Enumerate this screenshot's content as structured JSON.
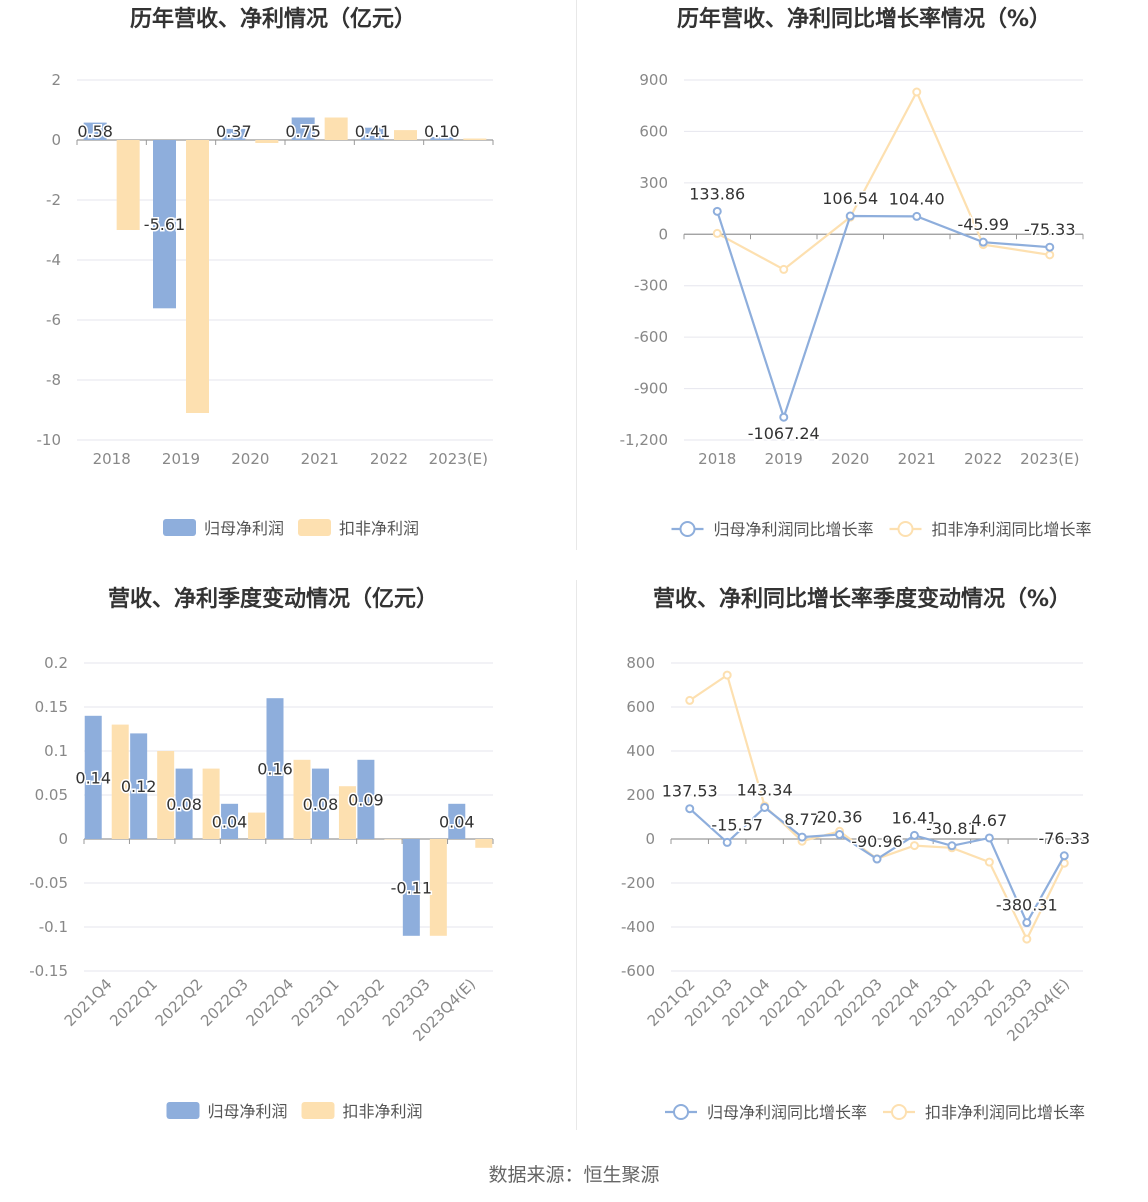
{
  "colors": {
    "primary": "#8eaedc",
    "secondary": "#fde0b0",
    "grid": "#e6e6ee",
    "axis": "#999999",
    "label": "#888888",
    "title": "#333333"
  },
  "footer": {
    "text": "数据来源：恒生聚源"
  },
  "chart_data": [
    {
      "type": "bar",
      "title": "历年营收、净利情况（亿元）",
      "categories": [
        "2018",
        "2019",
        "2020",
        "2021",
        "2022",
        "2023(E)"
      ],
      "ylim": [
        -10,
        2
      ],
      "yticks": [
        "2",
        "0",
        "-2",
        "-4",
        "-6",
        "-8",
        "-10"
      ],
      "series": [
        {
          "name": "归母净利润",
          "values": [
            0.58,
            -5.61,
            0.37,
            0.75,
            0.41,
            0.1
          ],
          "labels": [
            "0.58",
            "-5.61",
            "0.37",
            "0.75",
            "0.41",
            "0.10"
          ]
        },
        {
          "name": "扣非净利润",
          "values": [
            -3.0,
            -9.1,
            -0.1,
            0.75,
            0.33,
            0.05
          ]
        }
      ],
      "legend": "bottom"
    },
    {
      "type": "line",
      "title": "历年营收、净利同比增长率情况（%）",
      "categories": [
        "2018",
        "2019",
        "2020",
        "2021",
        "2022",
        "2023(E)"
      ],
      "ylim": [
        -1200,
        900
      ],
      "yticks": [
        "900",
        "600",
        "300",
        "0",
        "-300",
        "-600",
        "-900",
        "-1,200"
      ],
      "series": [
        {
          "name": "归母净利润同比增长率",
          "values": [
            133.86,
            -1067.24,
            106.54,
            104.4,
            -45.99,
            -75.33
          ],
          "labels": [
            "133.86",
            "-1067.24",
            "106.54",
            "104.40",
            "-45.99",
            "-75.33"
          ]
        },
        {
          "name": "扣非净利润同比增长率",
          "values": [
            5,
            -205,
            100,
            830,
            -60,
            -120
          ]
        }
      ],
      "legend": "bottom"
    },
    {
      "type": "bar",
      "title": "营收、净利季度变动情况（亿元）",
      "categories": [
        "2021Q4",
        "2022Q1",
        "2022Q2",
        "2022Q3",
        "2022Q4",
        "2023Q1",
        "2023Q2",
        "2023Q3",
        "2023Q4(E)"
      ],
      "ylim": [
        -0.15,
        0.2
      ],
      "yticks": [
        "0.2",
        "0.15",
        "0.1",
        "0.05",
        "0",
        "-0.05",
        "-0.1",
        "-0.15"
      ],
      "series": [
        {
          "name": "归母净利润",
          "values": [
            0.14,
            0.12,
            0.08,
            0.04,
            0.16,
            0.08,
            0.09,
            -0.11,
            0.04
          ],
          "labels": [
            "0.14",
            "0.12",
            "0.08",
            "0.04",
            "0.16",
            "0.08",
            "0.09",
            "-0.11",
            "0.04"
          ]
        },
        {
          "name": "扣非净利润",
          "values": [
            0.13,
            0.1,
            0.08,
            0.03,
            0.09,
            0.06,
            0.0,
            -0.11,
            -0.01
          ]
        }
      ],
      "legend": "bottom"
    },
    {
      "type": "line",
      "title": "营收、净利同比增长率季度变动情况（%）",
      "categories": [
        "2021Q2",
        "2021Q3",
        "2021Q4",
        "2022Q1",
        "2022Q2",
        "2022Q3",
        "2022Q4",
        "2023Q1",
        "2023Q2",
        "2023Q3",
        "2023Q4(E)"
      ],
      "ylim": [
        -600,
        800
      ],
      "yticks": [
        "800",
        "600",
        "400",
        "200",
        "0",
        "-200",
        "-400",
        "-600"
      ],
      "series": [
        {
          "name": "归母净利润同比增长率",
          "values": [
            137.53,
            -15.57,
            143.34,
            8.77,
            20.36,
            -90.96,
            16.41,
            -30.81,
            4.67,
            -380.31,
            -76.33
          ],
          "labels": [
            "137.53",
            "-15.57",
            "143.34",
            "8.77",
            "20.36",
            "-90.96",
            "16.41",
            "-30.81",
            "4.67",
            "-380.31",
            "-76.33"
          ]
        },
        {
          "name": "扣非净利润同比增长率",
          "values": [
            630,
            745,
            150,
            -10,
            35,
            -90,
            -30,
            -40,
            -105,
            -455,
            -110
          ]
        }
      ],
      "legend": "bottom"
    }
  ]
}
